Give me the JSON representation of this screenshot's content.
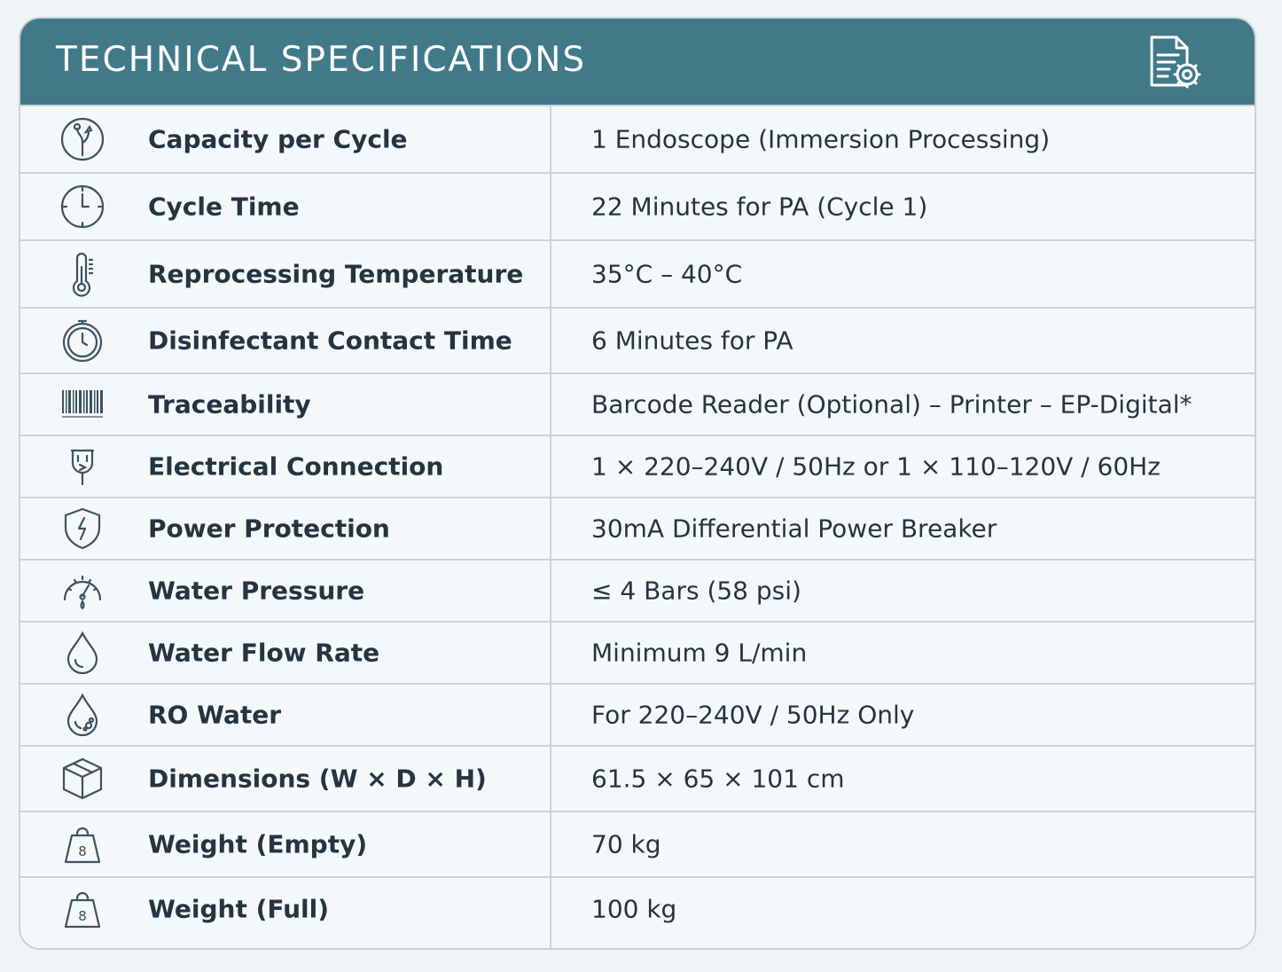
{
  "header": {
    "title": "TECHNICAL SPECIFICATIONS",
    "icon": "document-gear-icon",
    "color": "#417989"
  },
  "specs": [
    {
      "icon": "endoscope-icon",
      "label": "Capacity per Cycle",
      "value": "1 Endoscope (Immersion Processing)"
    },
    {
      "icon": "clock-icon",
      "label": "Cycle Time",
      "value": "22 Minutes for PA (Cycle 1)"
    },
    {
      "icon": "thermometer-icon",
      "label": "Reprocessing Temperature",
      "value": "35°C – 40°C"
    },
    {
      "icon": "stopwatch-icon",
      "label": "Disinfectant Contact Time",
      "value": "6 Minutes for PA"
    },
    {
      "icon": "barcode-icon",
      "label": "Traceability",
      "value": "Barcode Reader (Optional) – Printer – EP-Digital*"
    },
    {
      "icon": "plug-icon",
      "label": "Electrical Connection",
      "value": "1 × 220–240V / 50Hz or 1 × 110–120V / 60Hz"
    },
    {
      "icon": "shield-icon",
      "label": "Power Protection",
      "value": "30mA Differential Power Breaker"
    },
    {
      "icon": "pressure-gauge-icon",
      "label": "Water Pressure",
      "value": "≤ 4 Bars (58 psi)"
    },
    {
      "icon": "water-drop-icon",
      "label": "Water Flow Rate",
      "value": "Minimum 9 L/min"
    },
    {
      "icon": "ro-water-drop-icon",
      "label": "RO Water",
      "value": "For 220–240V / 50Hz Only"
    },
    {
      "icon": "box-icon",
      "label": "Dimensions (W × D × H)",
      "value": "61.5 × 65 × 101 cm"
    },
    {
      "icon": "weight-icon",
      "label": "Weight (Empty)",
      "value": "70 kg"
    },
    {
      "icon": "weight-icon",
      "label": "Weight (Full)",
      "value": "100 kg"
    }
  ]
}
